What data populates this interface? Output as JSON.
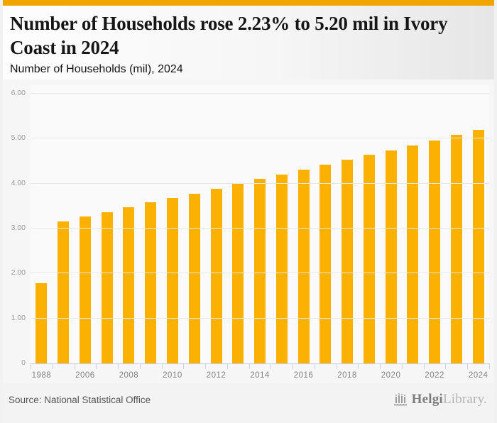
{
  "header": {
    "title": "Number of Households rose 2.23% to 5.20 mil in Ivory Coast in 2024",
    "subtitle": "Number of Households (mil), 2024"
  },
  "chart_data": {
    "type": "bar",
    "title": "Number of Households (mil), 2024",
    "x": [
      1988,
      2005,
      2006,
      2007,
      2008,
      2009,
      2010,
      2011,
      2012,
      2013,
      2014,
      2015,
      2016,
      2017,
      2018,
      2019,
      2020,
      2021,
      2022,
      2023,
      2024
    ],
    "values": [
      1.79,
      3.16,
      3.27,
      3.37,
      3.48,
      3.58,
      3.68,
      3.78,
      3.88,
      3.99,
      4.1,
      4.2,
      4.31,
      4.42,
      4.53,
      4.64,
      4.74,
      4.85,
      4.96,
      5.09,
      5.2
    ],
    "x_tick_labels": [
      "1988",
      "",
      "2006",
      "",
      "2008",
      "",
      "2010",
      "",
      "2012",
      "",
      "2014",
      "",
      "2016",
      "",
      "2018",
      "",
      "2020",
      "",
      "2022",
      "",
      "2024"
    ],
    "y_ticks": [
      "6.00",
      "5.00",
      "4.00",
      "3.00",
      "2.00",
      "1.00",
      "0"
    ],
    "ylim": [
      0,
      6
    ],
    "grid": true,
    "legend_position": "none",
    "bar_color": "#FBB101",
    "accent_color": "#F0A500",
    "axis_color": "#C9D0E2",
    "grid_color": "#E8E8E8"
  },
  "footer": {
    "source": "Source: National Statistical Office",
    "logo": {
      "brand_bold": "Helgi",
      "brand_light": "Library."
    }
  }
}
